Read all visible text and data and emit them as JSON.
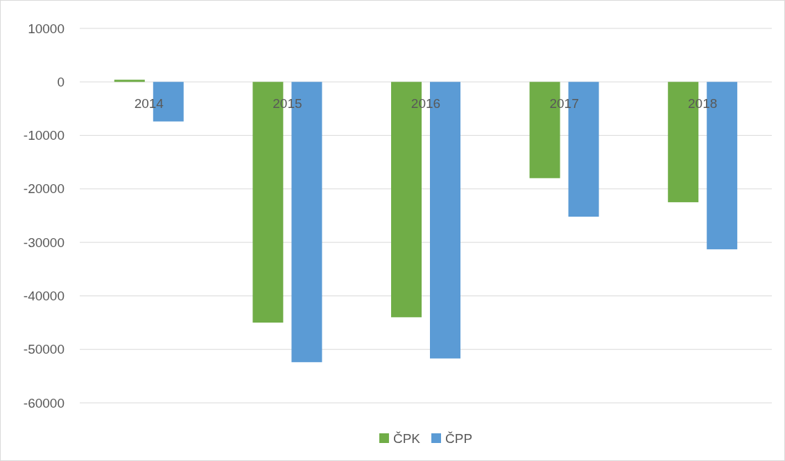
{
  "chart_data": {
    "type": "bar",
    "categories": [
      "2014",
      "2015",
      "2016",
      "2017",
      "2018"
    ],
    "series": [
      {
        "name": "ČPK",
        "color": "#70ad47",
        "values": [
          400,
          -45000,
          -44000,
          -18000,
          -22500
        ]
      },
      {
        "name": "ČPP",
        "color": "#5b9bd5",
        "values": [
          -7400,
          -52400,
          -51700,
          -25200,
          -31300
        ]
      }
    ],
    "ylim": [
      -60000,
      10000
    ],
    "yticks": [
      -60000,
      -50000,
      -40000,
      -30000,
      -20000,
      -10000,
      0,
      10000
    ],
    "grid": "y",
    "legend": "bottom"
  }
}
